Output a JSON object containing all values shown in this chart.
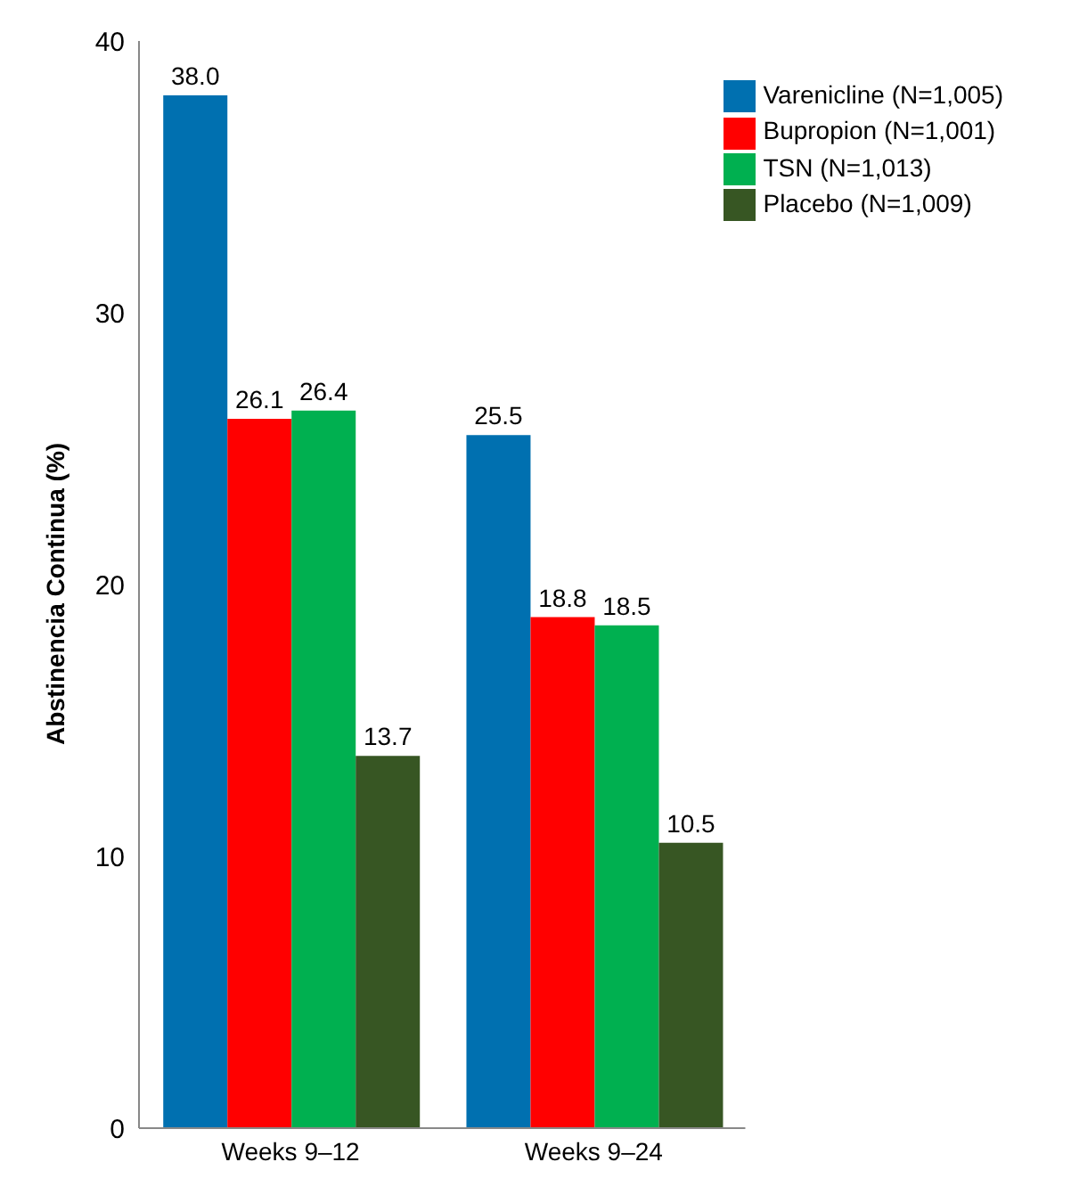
{
  "chart_data": {
    "type": "bar",
    "ylabel": "Abstinencia Continua (%)",
    "categories": [
      "Weeks 9–12",
      "Weeks 9–24"
    ],
    "series": [
      {
        "name": "Varenicline (N=1,005)",
        "color": "#0070b0",
        "values": [
          38.0,
          25.5
        ],
        "value_labels": [
          "38.0",
          "25.5"
        ]
      },
      {
        "name": "Bupropion (N=1,001)",
        "color": "#ff0000",
        "values": [
          26.1,
          18.8
        ],
        "value_labels": [
          "26.1",
          "18.8"
        ]
      },
      {
        "name": "TSN (N=1,013)",
        "color": "#00b050",
        "values": [
          26.4,
          18.5
        ],
        "value_labels": [
          "26.4",
          "18.5"
        ]
      },
      {
        "name": "Placebo (N=1,009)",
        "color": "#375623",
        "values": [
          13.7,
          10.5
        ],
        "value_labels": [
          "13.7",
          "10.5"
        ]
      }
    ],
    "ylim": [
      0,
      40
    ],
    "yticks": [
      0,
      10,
      20,
      30,
      40
    ],
    "grid": false,
    "legend": "top right"
  }
}
